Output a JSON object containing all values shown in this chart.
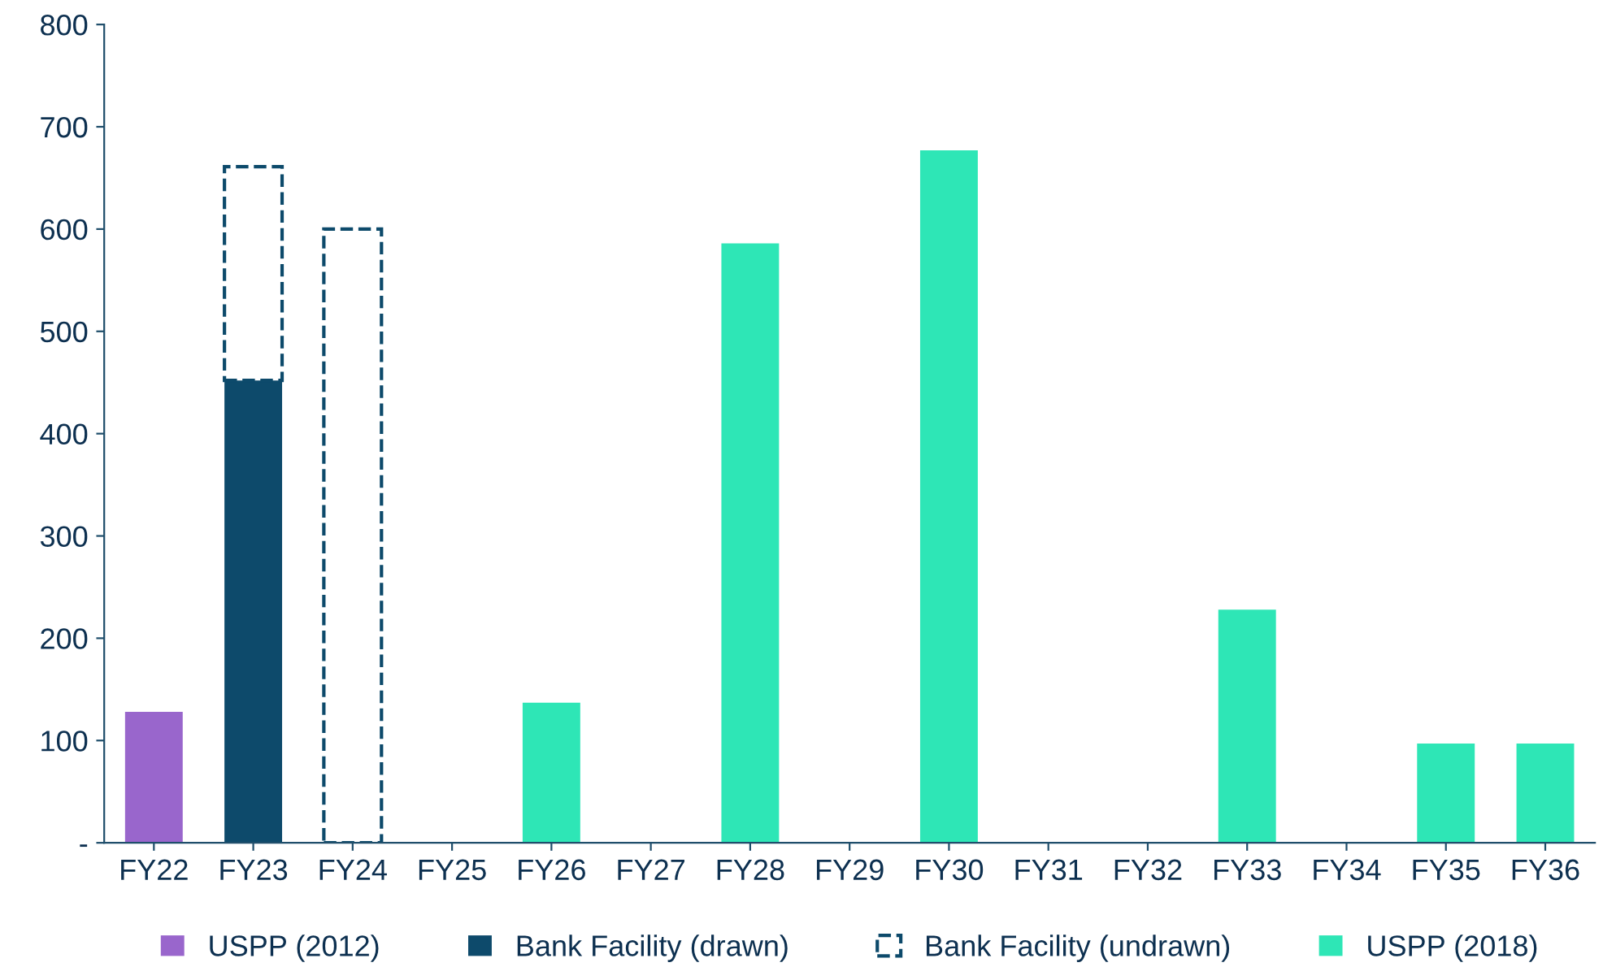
{
  "chart_data": {
    "type": "bar",
    "stacked": true,
    "categories": [
      "FY22",
      "FY23",
      "FY24",
      "FY25",
      "FY26",
      "FY27",
      "FY28",
      "FY29",
      "FY30",
      "FY31",
      "FY32",
      "FY33",
      "FY34",
      "FY35",
      "FY36"
    ],
    "series": [
      {
        "name": "USPP (2012)",
        "color": "#9966cc",
        "values": [
          128,
          null,
          null,
          null,
          null,
          null,
          null,
          null,
          null,
          null,
          null,
          null,
          null,
          null,
          null
        ]
      },
      {
        "name": "Bank Facility (drawn)",
        "color": "#0d4a6b",
        "values": [
          null,
          452,
          null,
          null,
          null,
          null,
          null,
          null,
          null,
          null,
          null,
          null,
          null,
          null,
          null
        ]
      },
      {
        "name": "Bank Facility (undrawn)",
        "color": "#0d4a6b",
        "line_style": "dashed",
        "values": [
          null,
          209,
          600,
          null,
          null,
          null,
          null,
          null,
          null,
          null,
          null,
          null,
          null,
          null,
          null
        ]
      },
      {
        "name": "USPP (2018)",
        "color": "#2ee6b6",
        "values": [
          null,
          null,
          null,
          null,
          137,
          null,
          586,
          null,
          677,
          null,
          null,
          228,
          null,
          97,
          97
        ]
      }
    ],
    "ylim": [
      0,
      800
    ],
    "yticks": [
      {
        "value": 0,
        "label": "-"
      },
      100,
      200,
      300,
      400,
      500,
      600,
      700,
      800
    ],
    "grid": false,
    "legend": "bottom"
  }
}
